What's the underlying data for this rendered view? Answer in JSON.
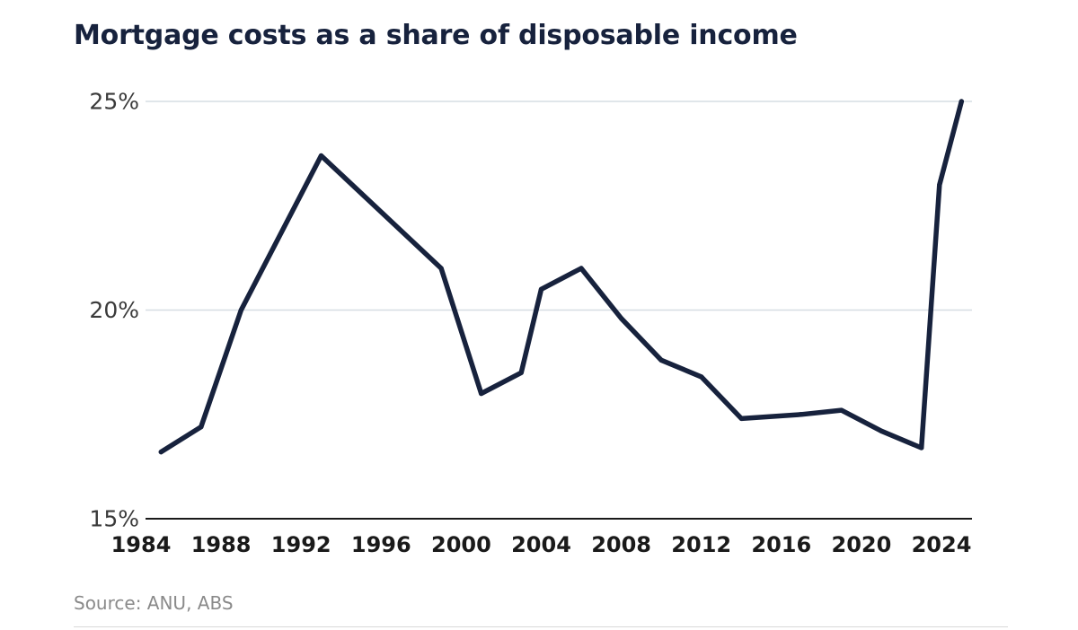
{
  "chart_data": {
    "type": "line",
    "title": "Mortgage costs as a share of disposable income",
    "source": "Source: ANU, ABS",
    "xlabel": "",
    "ylabel": "",
    "xlim": [
      1984,
      2024
    ],
    "ylim": [
      15,
      25
    ],
    "x_ticks": [
      1984,
      1988,
      1992,
      1996,
      2000,
      2004,
      2008,
      2012,
      2016,
      2020,
      2024
    ],
    "y_ticks": [
      {
        "value": 15,
        "label": "15%"
      },
      {
        "value": 20,
        "label": "20%"
      },
      {
        "value": 25,
        "label": "25%"
      }
    ],
    "grid": true,
    "legend": "none",
    "series": [
      {
        "color": "#17223d",
        "x": [
          1985,
          1987,
          1989,
          1993,
          1999,
          2001,
          2003,
          2004,
          2006,
          2008,
          2010,
          2012,
          2014,
          2017,
          2019,
          2021,
          2023,
          2023.9,
          2025
        ],
        "y": [
          16.6,
          17.2,
          20.0,
          23.7,
          21.0,
          18.0,
          18.5,
          20.5,
          21.0,
          19.8,
          18.8,
          18.4,
          17.4,
          17.5,
          17.6,
          17.1,
          16.7,
          23.0,
          25.0
        ]
      }
    ]
  }
}
